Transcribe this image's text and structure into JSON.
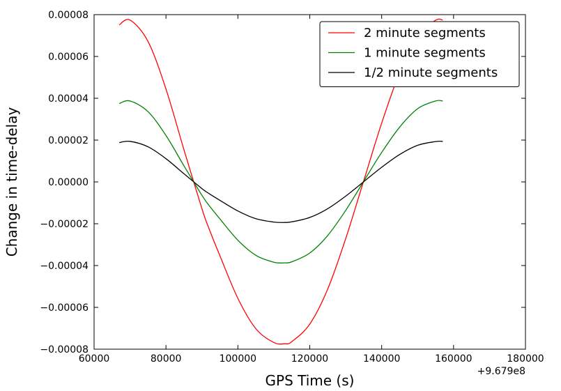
{
  "chart_data": {
    "type": "line",
    "xlabel": "GPS Time (s)",
    "ylabel": "Change in time-delay",
    "xlim": [
      60000,
      180000
    ],
    "ylim": [
      -8e-05,
      8e-05
    ],
    "x_offset_label": "+9.679e8",
    "x_ticks": [
      60000,
      80000,
      100000,
      120000,
      140000,
      160000,
      180000
    ],
    "x_tick_labels": [
      "60000",
      "80000",
      "100000",
      "120000",
      "140000",
      "160000",
      "180000"
    ],
    "y_ticks": [
      -8e-05,
      -6e-05,
      -4e-05,
      -2e-05,
      0,
      2e-05,
      4e-05,
      6e-05,
      8e-05
    ],
    "y_tick_labels": [
      "−0.00008",
      "−0.00006",
      "−0.00004",
      "−0.00002",
      "0.00000",
      "0.00002",
      "0.00004",
      "0.00006",
      "0.00008"
    ],
    "grid": false,
    "legend_position": "top-right",
    "x": [
      67000,
      70000,
      75000,
      80000,
      85000,
      90000,
      92000,
      95000,
      100000,
      105000,
      110000,
      113000,
      115000,
      120000,
      125000,
      130000,
      135000,
      140000,
      145000,
      150000,
      155000,
      157000
    ],
    "series": [
      {
        "name": "2 minute segments",
        "color": "#ff0000",
        "values": [
          7.51e-05,
          7.74e-05,
          6.72e-05,
          4.44e-05,
          1.54e-05,
          -1.28e-05,
          -2.25e-05,
          -3.53e-05,
          -5.57e-05,
          -7.02e-05,
          -7.68e-05,
          -7.74e-05,
          -7.64e-05,
          -6.8e-05,
          -5.12e-05,
          -2.71e-05,
          5e-07,
          2.81e-05,
          5.23e-05,
          6.99e-05,
          7.73e-05,
          7.74e-05
        ]
      },
      {
        "name": "1 minute segments",
        "color": "#008000",
        "values": [
          3.75e-05,
          3.87e-05,
          3.36e-05,
          2.22e-05,
          7.7e-06,
          -6.4e-06,
          -1.13e-05,
          -1.77e-05,
          -2.79e-05,
          -3.51e-05,
          -3.84e-05,
          -3.87e-05,
          -3.82e-05,
          -3.4e-05,
          -2.56e-05,
          -1.36e-05,
          3e-07,
          1.41e-05,
          2.62e-05,
          3.5e-05,
          3.87e-05,
          3.87e-05
        ]
      },
      {
        "name": "1/2 minute segments",
        "color": "#000000",
        "values": [
          1.88e-05,
          1.94e-05,
          1.68e-05,
          1.11e-05,
          3.9e-06,
          -3.2e-06,
          -5.6e-06,
          -8.8e-06,
          -1.39e-05,
          -1.76e-05,
          -1.92e-05,
          -1.94e-05,
          -1.91e-05,
          -1.7e-05,
          -1.28e-05,
          -6.8e-06,
          1e-07,
          7e-06,
          1.31e-05,
          1.75e-05,
          1.93e-05,
          1.94e-05
        ]
      }
    ]
  }
}
